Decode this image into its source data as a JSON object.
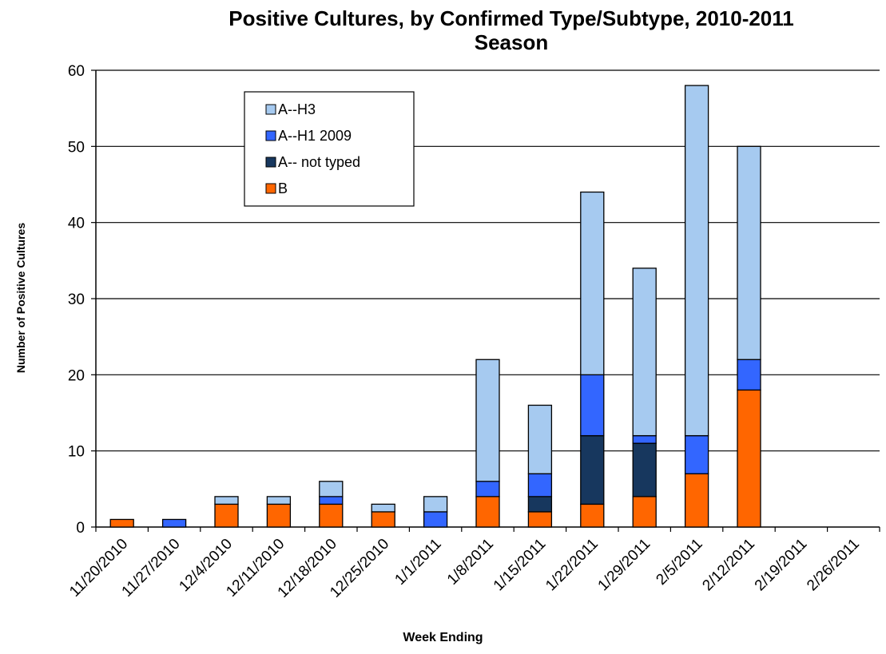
{
  "chart_data": {
    "type": "bar",
    "stacked": true,
    "title_line1": "Positive Cultures, by Confirmed Type/Subtype, 2010-2011",
    "title_line2": "Season",
    "xlabel": "Week Ending",
    "ylabel": "Number of Positive Cultures",
    "ylim": [
      0,
      60
    ],
    "yticks": [
      0,
      10,
      20,
      30,
      40,
      50,
      60
    ],
    "grid": true,
    "legend_position": "top-left",
    "categories": [
      "11/20/2010",
      "11/27/2010",
      "12/4/2010",
      "12/11/2010",
      "12/18/2010",
      "12/25/2010",
      "1/1/2011",
      "1/8/2011",
      "1/15/2011",
      "1/22/2011",
      "1/29/2011",
      "2/5/2011",
      "2/12/2011",
      "2/19/2011",
      "2/26/2011"
    ],
    "series": [
      {
        "name": "B",
        "color": "#ff6600",
        "values": [
          1,
          0,
          3,
          3,
          3,
          2,
          0,
          4,
          2,
          3,
          4,
          7,
          18,
          0,
          0
        ]
      },
      {
        "name": "A-- not typed",
        "color": "#17375e",
        "values": [
          0,
          0,
          0,
          0,
          0,
          0,
          0,
          0,
          2,
          9,
          7,
          0,
          0,
          0,
          0
        ]
      },
      {
        "name": "A--H1 2009",
        "color": "#3366ff",
        "values": [
          0,
          1,
          0,
          0,
          1,
          0,
          2,
          2,
          3,
          8,
          1,
          5,
          4,
          0,
          0
        ]
      },
      {
        "name": "A--H3",
        "color": "#a6caf0",
        "values": [
          0,
          0,
          1,
          1,
          2,
          1,
          2,
          16,
          9,
          24,
          22,
          46,
          28,
          0,
          0
        ]
      }
    ],
    "legend_order": [
      "A--H3",
      "A--H1 2009",
      "A-- not typed",
      "B"
    ]
  }
}
